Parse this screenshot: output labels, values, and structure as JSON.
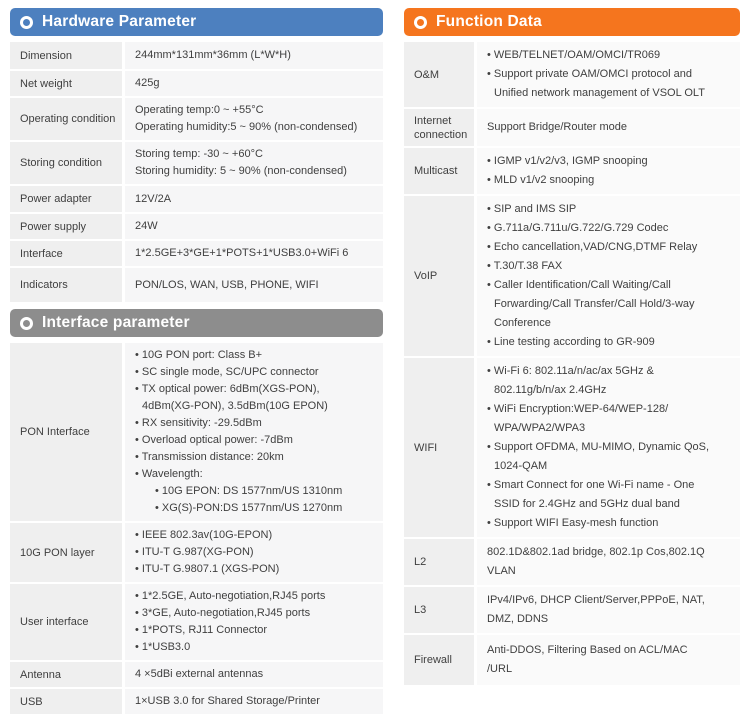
{
  "colors": {
    "hardware_accent": "#4d80bf",
    "interface_accent": "#8d8d8d",
    "function_accent": "#f5751e",
    "label_cell_bg": "#efefef",
    "value_cell_bg": "#f6f6f7",
    "text": "#3f3f3f",
    "header_text": "#ffffff"
  },
  "left_panel": {
    "sections": [
      {
        "id": "hardware",
        "title": "Hardware Parameter",
        "accent_key": "hardware_accent",
        "table_class": "t-hw",
        "label_width": 112,
        "rows": [
          {
            "label": "Dimension",
            "h": 27,
            "items": [
              {
                "t": "plain",
                "text": "244mm*131mm*36mm (L*W*H)"
              }
            ]
          },
          {
            "label": "Net weight",
            "h": 24,
            "items": [
              {
                "t": "plain",
                "text": "425g"
              }
            ]
          },
          {
            "label": "Operating condition",
            "h": 42,
            "items": [
              {
                "t": "plain",
                "text": "Operating temp:0 ~ +55°C"
              },
              {
                "t": "plain",
                "text": "Operating humidity:5 ~ 90% (non-condensed)"
              }
            ]
          },
          {
            "label": "Storing condition",
            "h": 42,
            "items": [
              {
                "t": "plain",
                "text": "Storing temp: -30 ~ +60°C"
              },
              {
                "t": "plain",
                "text": "Storing humidity: 5 ~ 90% (non-condensed)"
              }
            ]
          },
          {
            "label": "Power adapter",
            "h": 26,
            "items": [
              {
                "t": "plain",
                "text": "12V/2A"
              }
            ]
          },
          {
            "label": "Power supply",
            "h": 25,
            "items": [
              {
                "t": "plain",
                "text": "24W"
              }
            ]
          },
          {
            "label": "Interface",
            "h": 24,
            "items": [
              {
                "t": "plain",
                "text": "1*2.5GE+3*GE+1*POTS+1*USB3.0+WiFi 6"
              }
            ]
          },
          {
            "label": "Indicators",
            "h": 34,
            "items": [
              {
                "t": "plain",
                "text": "PON/LOS, WAN, USB, PHONE, WIFI"
              }
            ]
          }
        ]
      },
      {
        "id": "interface",
        "title": "Interface parameter",
        "accent_key": "interface_accent",
        "table_class": "t-if",
        "label_width": 112,
        "rows": [
          {
            "label": "PON Interface",
            "h": 176,
            "items": [
              {
                "t": "bullet",
                "text": "10G PON port: Class B+"
              },
              {
                "t": "bullet",
                "text": "SC single mode, SC/UPC connector"
              },
              {
                "t": "bullet",
                "text": "TX optical power: 6dBm(XGS-PON),"
              },
              {
                "t": "cont",
                "text": "4dBm(XG-PON), 3.5dBm(10G EPON)"
              },
              {
                "t": "bullet",
                "text": "RX sensitivity: -29.5dBm"
              },
              {
                "t": "bullet",
                "text": "Overload optical power: -7dBm"
              },
              {
                "t": "bullet",
                "text": "Transmission distance: 20km"
              },
              {
                "t": "bullet",
                "text": "Wavelength:"
              },
              {
                "t": "sub",
                "text": "10G EPON: DS 1577nm/US 1310nm"
              },
              {
                "t": "sub",
                "text": "XG(S)-PON:DS 1577nm/US 1270nm"
              }
            ]
          },
          {
            "label": "10G PON layer",
            "h": 57,
            "items": [
              {
                "t": "bullet",
                "text": "IEEE 802.3av(10G-EPON)"
              },
              {
                "t": "bullet",
                "text": "ITU-T G.987(XG-PON)"
              },
              {
                "t": "bullet",
                "text": "ITU-T G.9807.1 (XGS-PON)"
              }
            ]
          },
          {
            "label": "User interface",
            "h": 74,
            "items": [
              {
                "t": "bullet",
                "text": "1*2.5GE, Auto-negotiation,RJ45 ports"
              },
              {
                "t": "bullet",
                "text": "3*GE, Auto-negotiation,RJ45 ports"
              },
              {
                "t": "bullet",
                "text": "1*POTS, RJ11 Connector"
              },
              {
                "t": "bullet",
                "text": "1*USB3.0"
              }
            ]
          },
          {
            "label": "Antenna",
            "h": 23,
            "items": [
              {
                "t": "plain",
                "text": "4 ×5dBi external antennas"
              }
            ]
          },
          {
            "label": "USB",
            "h": 23,
            "items": [
              {
                "t": "plain",
                "text": "1×USB 3.0 for Shared Storage/Printer"
              }
            ]
          }
        ]
      }
    ]
  },
  "right_panel": {
    "sections": [
      {
        "id": "function",
        "title": "Function Data",
        "accent_key": "function_accent",
        "table_class": "t-right",
        "label_width": 70,
        "rows": [
          {
            "label": "O&M",
            "h": 64,
            "items": [
              {
                "t": "bullet",
                "text": "WEB/TELNET/OAM/OMCI/TR069"
              },
              {
                "t": "bullet",
                "text": "Support private OAM/OMCI protocol and"
              },
              {
                "t": "cont",
                "text": "Unified network management of VSOL OLT"
              }
            ]
          },
          {
            "label": "Internet connection",
            "h": 37,
            "items": [
              {
                "t": "plain",
                "text": "Support Bridge/Router mode"
              }
            ]
          },
          {
            "label": "Multicast",
            "h": 44,
            "items": [
              {
                "t": "bullet",
                "text": "IGMP v1/v2/v3, IGMP snooping"
              },
              {
                "t": "bullet",
                "text": "MLD v1/v2 snooping"
              }
            ]
          },
          {
            "label": "VoIP",
            "h": 158,
            "items": [
              {
                "t": "bullet",
                "text": "SIP and IMS SIP"
              },
              {
                "t": "bullet",
                "text": "G.711a/G.711u/G.722/G.729 Codec"
              },
              {
                "t": "bullet",
                "text": "Echo cancellation,VAD/CNG,DTMF Relay"
              },
              {
                "t": "bullet",
                "text": "T.30/T.38 FAX"
              },
              {
                "t": "bullet",
                "text": "Caller Identification/Call Waiting/Call"
              },
              {
                "t": "cont",
                "text": "Forwarding/Call Transfer/Call Hold/3-way"
              },
              {
                "t": "cont",
                "text": "Conference"
              },
              {
                "t": "bullet",
                "text": "Line testing according to GR-909"
              }
            ]
          },
          {
            "label": "WIFI",
            "h": 177,
            "items": [
              {
                "t": "bullet",
                "text": "Wi-Fi 6: 802.11a/n/ac/ax 5GHz &"
              },
              {
                "t": "cont",
                "text": "802.11g/b/n/ax 2.4GHz"
              },
              {
                "t": "bullet",
                "text": "WiFi Encryption:WEP-64/WEP-128/"
              },
              {
                "t": "cont",
                "text": "WPA/WPA2/WPA3"
              },
              {
                "t": "bullet",
                "text": "Support OFDMA, MU-MIMO, Dynamic QoS,"
              },
              {
                "t": "cont",
                "text": "1024-QAM"
              },
              {
                "t": "bullet",
                "text": "Smart Connect for one Wi-Fi name - One"
              },
              {
                "t": "cont",
                "text": "SSID for 2.4GHz and 5GHz dual band"
              },
              {
                "t": "bullet",
                "text": "Support WIFI Easy-mesh function"
              }
            ]
          },
          {
            "label": "L2",
            "h": 44,
            "items": [
              {
                "t": "plain",
                "text": "802.1D&802.1ad bridge, 802.1p Cos,802.1Q"
              },
              {
                "t": "plain",
                "text": "VLAN"
              }
            ]
          },
          {
            "label": "L3",
            "h": 46,
            "items": [
              {
                "t": "plain",
                "text": "IPv4/IPv6, DHCP Client/Server,PPPoE, NAT,"
              },
              {
                "t": "plain",
                "text": "DMZ, DDNS"
              }
            ]
          },
          {
            "label": "Firewall",
            "h": 50,
            "items": [
              {
                "t": "plain",
                "text": "Anti-DDOS, Filtering Based on ACL/MAC"
              },
              {
                "t": "plain",
                "text": "/URL"
              }
            ]
          }
        ]
      }
    ]
  }
}
